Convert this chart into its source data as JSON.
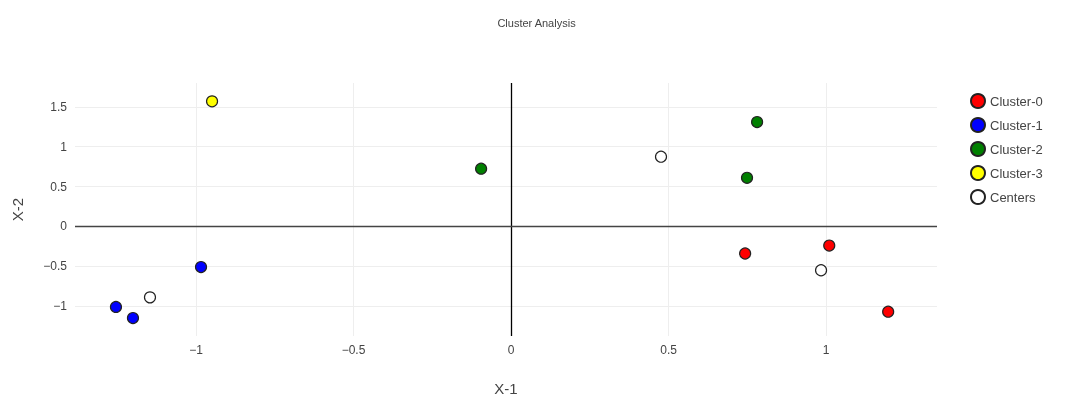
{
  "chart_data": {
    "type": "scatter",
    "title": "Cluster Analysis",
    "xlabel": "X-1",
    "ylabel": "X-2",
    "series": [
      {
        "name": "Cluster-0",
        "color": "#ff0000",
        "x": [
          0.743,
          1.01,
          1.197
        ],
        "values": [
          -0.34,
          -0.24,
          -1.07
        ]
      },
      {
        "name": "Cluster-1",
        "color": "#0000ff",
        "x": [
          -0.984,
          -1.254,
          -1.2
        ],
        "values": [
          -0.51,
          -1.01,
          -1.15
        ]
      },
      {
        "name": "Cluster-2",
        "color": "#008000",
        "x": [
          -0.095,
          0.781,
          0.749
        ],
        "values": [
          0.725,
          1.31,
          0.61
        ]
      },
      {
        "name": "Cluster-3",
        "color": "#ffff00",
        "x": [
          -0.949
        ],
        "values": [
          1.57
        ]
      },
      {
        "name": "Centers",
        "color": "#ffffff",
        "x": [
          0.476,
          0.984,
          -1.146
        ],
        "values": [
          0.875,
          -0.55,
          -0.89
        ]
      }
    ],
    "xlim": [
      -1.384,
      1.352
    ],
    "ylim": [
      -1.375,
      1.8
    ],
    "xticks": [
      {
        "value": -1,
        "label": "−1"
      },
      {
        "value": -0.5,
        "label": "−0.5"
      },
      0,
      0.5,
      1
    ],
    "yticks": [
      {
        "value": -1,
        "label": "−1"
      },
      {
        "value": -0.5,
        "label": "−0.5"
      },
      0,
      0.5,
      1,
      1.5
    ],
    "ref_lines": [
      {
        "axis": "x",
        "value": 0,
        "color": "#000000"
      },
      {
        "axis": "y",
        "value": 0,
        "color": "#444444"
      }
    ],
    "grid": true,
    "legend": "top right",
    "marker": "circle"
  }
}
